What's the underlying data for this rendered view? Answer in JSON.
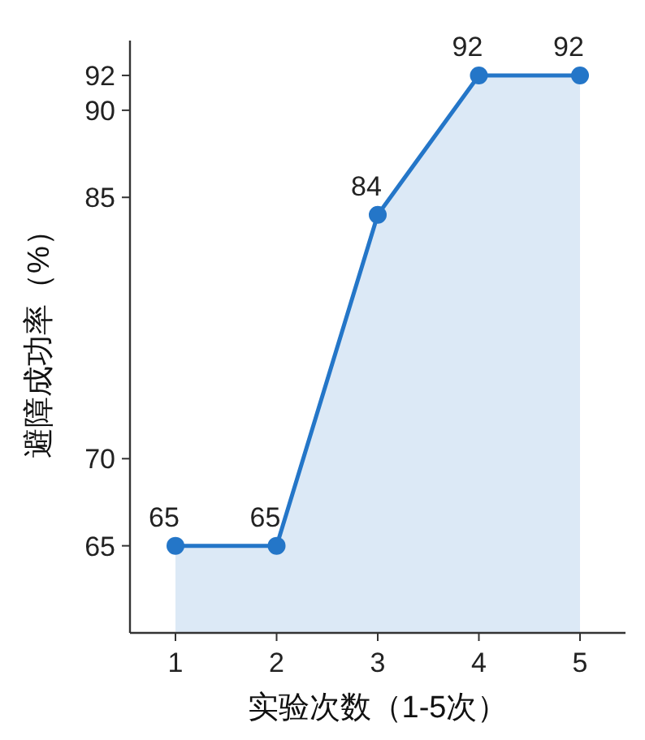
{
  "chart_data": {
    "type": "area",
    "categories": [
      "1",
      "2",
      "3",
      "4",
      "5"
    ],
    "series": [
      {
        "color": "#2476c8",
        "values": [
          65,
          65,
          84,
          92,
          92
        ]
      }
    ],
    "xlabel": "实验次数（1-5次）",
    "ylabel": "避障成功率（%）",
    "ylim": [
      60,
      94
    ],
    "yticks": [
      65,
      70,
      85,
      90,
      92
    ],
    "marker": "circle",
    "line_style": "solid",
    "data_labels": true,
    "grid": false
  }
}
